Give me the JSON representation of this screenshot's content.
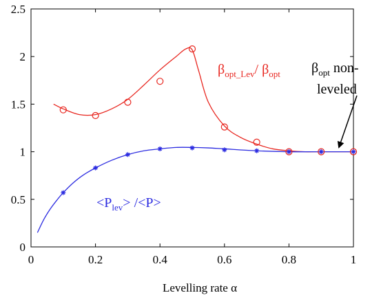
{
  "chart_data": {
    "type": "line",
    "xlabel": "Levelling rate α",
    "ylabel": "",
    "xlim": [
      0,
      1
    ],
    "ylim": [
      0,
      2.5
    ],
    "x_ticks": [
      "0",
      "0.2",
      "0.4",
      "0.6",
      "0.8",
      "1"
    ],
    "x_tick_values": [
      0,
      0.2,
      0.4,
      0.6,
      0.8,
      1
    ],
    "y_ticks": [
      "0",
      "0.5",
      "1",
      "1.5",
      "2",
      "2.5"
    ],
    "y_tick_values": [
      0,
      0.5,
      1,
      1.5,
      2,
      2.5
    ],
    "grid": false,
    "series": [
      {
        "name": "βopt_Lev/ βopt",
        "color": "#e8261f",
        "marker": "circle",
        "points": {
          "x": [
            0.1,
            0.2,
            0.3,
            0.4,
            0.5,
            0.6,
            0.7,
            0.8,
            0.9,
            1.0
          ],
          "y": [
            1.44,
            1.38,
            1.52,
            1.74,
            2.08,
            1.26,
            1.1,
            1.0,
            1.0,
            1.0
          ]
        },
        "curve": {
          "x": [
            0.07,
            0.1,
            0.15,
            0.2,
            0.25,
            0.3,
            0.35,
            0.4,
            0.45,
            0.48,
            0.5,
            0.52,
            0.55,
            0.6,
            0.65,
            0.7,
            0.75,
            0.8,
            0.85,
            0.9,
            0.95,
            1.0
          ],
          "y": [
            1.5,
            1.45,
            1.39,
            1.39,
            1.45,
            1.55,
            1.7,
            1.86,
            2.0,
            2.08,
            2.07,
            1.85,
            1.52,
            1.27,
            1.15,
            1.08,
            1.03,
            1.01,
            1.0,
            1.0,
            1.0,
            1.0
          ]
        }
      },
      {
        "name": "<Plev> /<P>",
        "color": "#2a2ae0",
        "marker": "star",
        "points": {
          "x": [
            0.1,
            0.2,
            0.3,
            0.4,
            0.5,
            0.6,
            0.7,
            0.8,
            0.9,
            1.0
          ],
          "y": [
            0.57,
            0.83,
            0.97,
            1.03,
            1.04,
            1.02,
            1.01,
            1.0,
            1.0,
            1.0
          ]
        },
        "curve": {
          "x": [
            0.02,
            0.04,
            0.06,
            0.08,
            0.1,
            0.13,
            0.16,
            0.2,
            0.25,
            0.3,
            0.35,
            0.4,
            0.45,
            0.5,
            0.55,
            0.6,
            0.7,
            0.8,
            0.9,
            1.0
          ],
          "y": [
            0.15,
            0.29,
            0.4,
            0.49,
            0.57,
            0.67,
            0.75,
            0.83,
            0.91,
            0.97,
            1.01,
            1.03,
            1.045,
            1.045,
            1.04,
            1.03,
            1.01,
            1.0,
            1.0,
            1.0
          ]
        }
      }
    ],
    "annotations": {
      "red_label": {
        "main1": "β",
        "sub1": "opt_Lev",
        "main2": "/ β",
        "sub2": "opt"
      },
      "blue_label": {
        "part1": "<P",
        "sub": "lev",
        "part2": "> /<P>"
      },
      "arrow_label": {
        "beta": "β",
        "sub": "opt",
        "tail": " non-",
        "line2": "leveled"
      }
    }
  }
}
